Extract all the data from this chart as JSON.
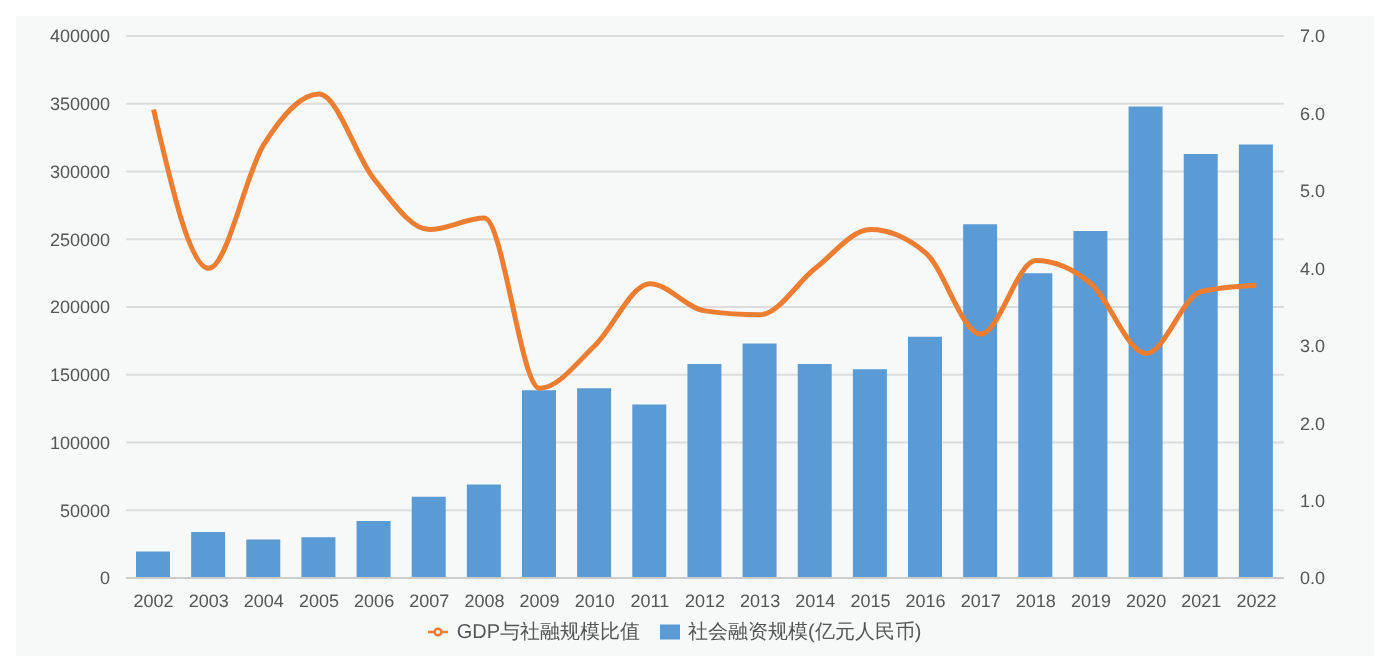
{
  "chart_data": {
    "type": "bar",
    "categories": [
      "2002",
      "2003",
      "2004",
      "2005",
      "2006",
      "2007",
      "2008",
      "2009",
      "2010",
      "2011",
      "2012",
      "2013",
      "2014",
      "2015",
      "2016",
      "2017",
      "2018",
      "2019",
      "2020",
      "2021",
      "2022"
    ],
    "series": [
      {
        "name": "社会融资规模(亿元人民币)",
        "color": "#5b9bd5",
        "values": [
          19500,
          34000,
          28500,
          30000,
          42000,
          60000,
          69000,
          138500,
          140000,
          128000,
          158000,
          173000,
          158000,
          154000,
          178000,
          261000,
          225000,
          256000,
          348000,
          313000,
          320000
        ]
      },
      {
        "name": "GDP与社融规模比值",
        "type": "line",
        "axis": "y2",
        "color": "#ed7d31",
        "values": [
          6.05,
          4.0,
          5.6,
          6.25,
          5.15,
          4.5,
          4.65,
          2.45,
          3.0,
          3.8,
          3.45,
          3.4,
          4.0,
          4.5,
          4.2,
          3.15,
          4.1,
          3.8,
          2.9,
          3.7,
          3.78
        ]
      }
    ],
    "ylim": [
      0,
      400000
    ],
    "yticks": [
      0,
      50000,
      100000,
      150000,
      200000,
      250000,
      300000,
      350000,
      400000
    ],
    "y2lim": [
      0,
      7
    ],
    "y2ticks": [
      {
        "value": 0,
        "label": "0.0"
      },
      {
        "value": 1,
        "label": "1.0"
      },
      {
        "value": 2,
        "label": "2.0"
      },
      {
        "value": 3,
        "label": "3.0"
      },
      {
        "value": 4,
        "label": "4.0"
      },
      {
        "value": 5,
        "label": "5.0"
      },
      {
        "value": 6,
        "label": "6.0"
      },
      {
        "value": 7,
        "label": "7.0"
      }
    ],
    "grid": "y",
    "legend": "bottom",
    "marker": "none"
  }
}
